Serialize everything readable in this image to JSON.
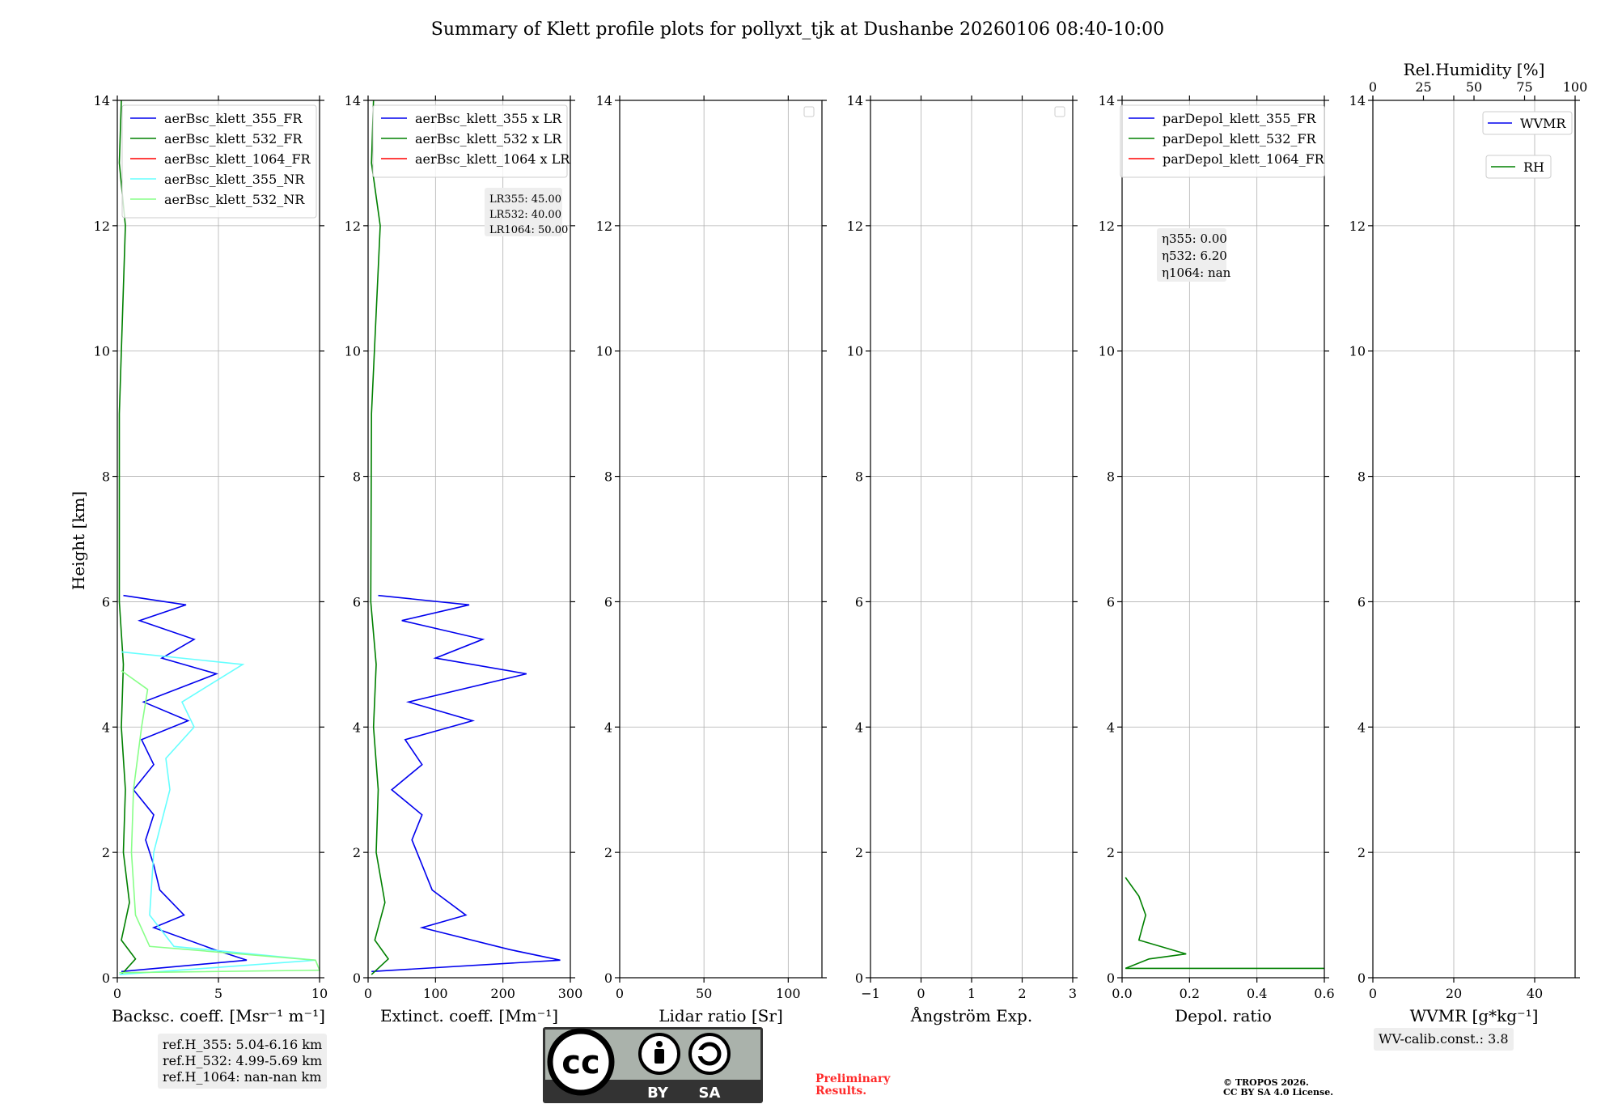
{
  "title": "Summary of Klett profile plots for pollyxt_tjk at Dushanbe 20260106 08:40-10:00",
  "colors": {
    "blue": "#0000ee",
    "green": "#008000",
    "red": "#ff0000",
    "cyan": "#66ffff",
    "lightgreen": "#88ff88"
  },
  "chart_data": [
    {
      "type": "line",
      "id": "backscatter",
      "xlabel": "Backsc. coeff. [Msr⁻¹ m⁻¹]",
      "ylabel": "Height [km]",
      "xlim": [
        0,
        10
      ],
      "ylim": [
        0,
        14
      ],
      "xticks": [
        0,
        5,
        10
      ],
      "yticks": [
        0,
        2,
        4,
        6,
        8,
        10,
        12,
        14
      ],
      "legend": [
        "aerBsc_klett_355_FR",
        "aerBsc_klett_532_FR",
        "aerBsc_klett_1064_FR",
        "aerBsc_klett_355_NR",
        "aerBsc_klett_532_NR"
      ],
      "legend_colors": [
        "#0000ee",
        "#008000",
        "#ff0000",
        "#66ffff",
        "#88ff88"
      ],
      "series": [
        {
          "name": "aerBsc_klett_355_FR",
          "color": "#0000ee",
          "points": [
            [
              0.2,
              0.1
            ],
            [
              6.4,
              0.28
            ],
            [
              4.8,
              0.45
            ],
            [
              1.8,
              0.8
            ],
            [
              3.3,
              1.0
            ],
            [
              2.1,
              1.4
            ],
            [
              1.8,
              1.8
            ],
            [
              1.4,
              2.2
            ],
            [
              1.8,
              2.6
            ],
            [
              0.8,
              3.0
            ],
            [
              1.8,
              3.4
            ],
            [
              1.2,
              3.8
            ],
            [
              3.5,
              4.1
            ],
            [
              1.3,
              4.4
            ],
            [
              4.9,
              4.85
            ],
            [
              2.2,
              5.1
            ],
            [
              3.8,
              5.4
            ],
            [
              1.1,
              5.7
            ],
            [
              3.4,
              5.95
            ],
            [
              0.3,
              6.1
            ]
          ]
        },
        {
          "name": "aerBsc_klett_532_FR",
          "color": "#008000",
          "points": [
            [
              0.2,
              0.05
            ],
            [
              0.9,
              0.3
            ],
            [
              0.2,
              0.6
            ],
            [
              0.6,
              1.2
            ],
            [
              0.3,
              2.0
            ],
            [
              0.4,
              3.0
            ],
            [
              0.2,
              4.0
            ],
            [
              0.3,
              5.0
            ],
            [
              0.1,
              6.0
            ],
            [
              0.1,
              9.0
            ],
            [
              0.4,
              12.0
            ],
            [
              0.1,
              13.0
            ],
            [
              0.2,
              14.0
            ]
          ]
        },
        {
          "name": "aerBsc_klett_355_NR",
          "color": "#66ffff",
          "points": [
            [
              0.1,
              0.05
            ],
            [
              9.8,
              0.28
            ],
            [
              2.8,
              0.5
            ],
            [
              1.6,
              1.0
            ],
            [
              1.8,
              2.0
            ],
            [
              2.6,
              3.0
            ],
            [
              2.4,
              3.5
            ],
            [
              3.8,
              4.0
            ],
            [
              3.2,
              4.4
            ],
            [
              6.2,
              5.0
            ],
            [
              0.2,
              5.2
            ]
          ]
        },
        {
          "name": "aerBsc_klett_532_NR",
          "color": "#88ff88",
          "points": [
            [
              0.1,
              0.08
            ],
            [
              10.0,
              0.12
            ],
            [
              9.8,
              0.28
            ],
            [
              1.6,
              0.5
            ],
            [
              0.9,
              1.0
            ],
            [
              0.7,
              2.0
            ],
            [
              0.8,
              3.0
            ],
            [
              1.2,
              4.0
            ],
            [
              1.5,
              4.6
            ],
            [
              0.2,
              4.9
            ]
          ]
        }
      ]
    },
    {
      "type": "line",
      "id": "extinction",
      "xlabel": "Extinct. coeff. [Mm⁻¹]",
      "ylabel": "",
      "xlim": [
        0,
        300
      ],
      "ylim": [
        0,
        14
      ],
      "xticks": [
        0,
        100,
        200,
        300
      ],
      "yticks": [
        0,
        2,
        4,
        6,
        8,
        10,
        12,
        14
      ],
      "legend": [
        "aerBsc_klett_355 x LR",
        "aerBsc_klett_532 x LR",
        "aerBsc_klett_1064 x LR"
      ],
      "legend_colors": [
        "#0000ee",
        "#008000",
        "#ff0000"
      ],
      "lidar_ratio_labels": [
        "LR355: 45.00",
        "LR532: 40.00",
        "LR1064: 50.00"
      ],
      "series": [
        {
          "name": "aerBsc_klett_355 x LR",
          "color": "#0000ee",
          "points": [
            [
              5,
              0.1
            ],
            [
              285,
              0.28
            ],
            [
              210,
              0.45
            ],
            [
              80,
              0.8
            ],
            [
              145,
              1.0
            ],
            [
              95,
              1.4
            ],
            [
              80,
              1.8
            ],
            [
              65,
              2.2
            ],
            [
              80,
              2.6
            ],
            [
              35,
              3.0
            ],
            [
              80,
              3.4
            ],
            [
              55,
              3.8
            ],
            [
              155,
              4.1
            ],
            [
              60,
              4.4
            ],
            [
              235,
              4.85
            ],
            [
              100,
              5.1
            ],
            [
              170,
              5.4
            ],
            [
              50,
              5.7
            ],
            [
              150,
              5.95
            ],
            [
              15,
              6.1
            ]
          ]
        },
        {
          "name": "aerBsc_klett_532 x LR",
          "color": "#008000",
          "points": [
            [
              5,
              0.05
            ],
            [
              30,
              0.3
            ],
            [
              10,
              0.6
            ],
            [
              25,
              1.2
            ],
            [
              12,
              2.0
            ],
            [
              15,
              3.0
            ],
            [
              8,
              4.0
            ],
            [
              12,
              5.0
            ],
            [
              4,
              6.0
            ],
            [
              5,
              9.0
            ],
            [
              18,
              12.0
            ],
            [
              5,
              13.0
            ],
            [
              8,
              14.0
            ]
          ]
        }
      ]
    },
    {
      "type": "line",
      "id": "lidar_ratio",
      "xlabel": "Lidar ratio [Sr]",
      "ylabel": "",
      "xlim": [
        0,
        120
      ],
      "ylim": [
        0,
        14
      ],
      "xticks": [
        0,
        50,
        100
      ],
      "yticks": [
        0,
        2,
        4,
        6,
        8,
        10,
        12,
        14
      ],
      "legend": [],
      "series": []
    },
    {
      "type": "line",
      "id": "angstrom",
      "xlabel": "Ångström Exp.",
      "ylabel": "",
      "xlim": [
        -1,
        3
      ],
      "ylim": [
        0,
        14
      ],
      "xticks": [
        -1,
        0,
        1,
        2,
        3
      ],
      "yticks": [
        0,
        2,
        4,
        6,
        8,
        10,
        12,
        14
      ],
      "legend": [],
      "series": []
    },
    {
      "type": "line",
      "id": "depol",
      "xlabel": "Depol. ratio",
      "ylabel": "",
      "xlim": [
        0,
        0.6
      ],
      "ylim": [
        0,
        14
      ],
      "xticks": [
        0.0,
        0.2,
        0.4,
        0.6
      ],
      "xtick_labels": [
        "0.0",
        "0.2",
        "0.4",
        "0.6"
      ],
      "yticks": [
        0,
        2,
        4,
        6,
        8,
        10,
        12,
        14
      ],
      "legend": [
        "parDepol_klett_355_FR",
        "parDepol_klett_532_FR",
        "parDepol_klett_1064_FR"
      ],
      "legend_colors": [
        "#0000ee",
        "#008000",
        "#ff0000"
      ],
      "eta_labels": [
        "η355: 0.00",
        "η532: 6.20",
        "η1064: nan"
      ],
      "series": [
        {
          "name": "parDepol_klett_532_FR",
          "color": "#008000",
          "points": [
            [
              0.6,
              0.15
            ],
            [
              0.01,
              0.15
            ],
            [
              0.08,
              0.3
            ],
            [
              0.19,
              0.38
            ],
            [
              0.05,
              0.6
            ],
            [
              0.07,
              1.0
            ],
            [
              0.05,
              1.3
            ],
            [
              0.01,
              1.6
            ]
          ]
        }
      ]
    },
    {
      "type": "line",
      "id": "wvmr",
      "xlabel": "WVMR [g*kg⁻¹]",
      "ylabel": "",
      "xlim": [
        0,
        50
      ],
      "ylim": [
        0,
        14
      ],
      "xticks": [
        0,
        20,
        40
      ],
      "yticks": [
        0,
        2,
        4,
        6,
        8,
        10,
        12,
        14
      ],
      "top_axis": {
        "label": "Rel.Humidity [%]",
        "lim": [
          0,
          100
        ],
        "ticks": [
          0,
          25,
          50,
          75,
          100
        ]
      },
      "legend": [
        "WVMR",
        "RH"
      ],
      "legend_colors": [
        "#0000ee",
        "#008000"
      ],
      "series": []
    }
  ],
  "ref_heights": [
    "ref.H_355: 5.04-6.16 km",
    "ref.H_532: 4.99-5.69 km",
    "ref.H_1064: nan-nan km"
  ],
  "wv_calib": "WV-calib.const.: 3.8",
  "license_badge": {
    "by": "BY",
    "sa": "SA"
  },
  "preliminary": [
    "Preliminary",
    "Results."
  ],
  "copyright": [
    "© TROPOS 2026.",
    "CC BY SA 4.0 License."
  ]
}
